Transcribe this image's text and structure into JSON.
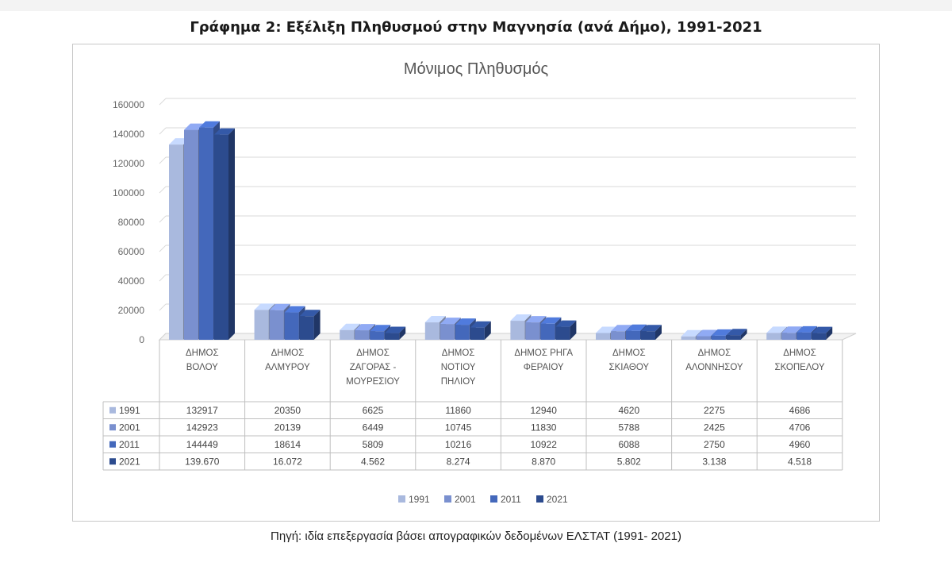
{
  "figure_title": "Γράφημα 2: Εξέλιξη Πληθυσμού στην Μαγνησία (ανά Δήμο), 1991-2021",
  "caption": "Πηγή: ιδία επεξεργασία βάσει απογραφικών δεδομένων ΕΛΣΤΑΤ (1991- 2021)",
  "chart_data": {
    "type": "bar",
    "title": "Μόνιμος Πληθυσμός",
    "xlabel": "",
    "ylabel": "",
    "ylim": [
      0,
      160000
    ],
    "yticks": [
      0,
      20000,
      40000,
      60000,
      80000,
      100000,
      120000,
      140000,
      160000
    ],
    "grid": true,
    "legend_position": "bottom",
    "style": "3d-clustered-column-with-data-table",
    "categories": [
      [
        "ΔΗΜΟΣ",
        "ΒΟΛΟΥ"
      ],
      [
        "ΔΗΜΟΣ",
        "ΑΛΜΥΡΟΥ"
      ],
      [
        "ΔΗΜΟΣ",
        "ΖΑΓΟΡΑΣ -",
        "ΜΟΥΡΕΣΙΟΥ"
      ],
      [
        "ΔΗΜΟΣ",
        "ΝΟΤΙΟΥ",
        "ΠΗΛΙΟΥ"
      ],
      [
        "ΔΗΜΟΣ ΡΗΓΑ",
        "ΦΕΡΑΙΟΥ"
      ],
      [
        "ΔΗΜΟΣ",
        "ΣΚΙΑΘΟΥ"
      ],
      [
        "ΔΗΜΟΣ",
        "ΑΛΟΝΝΗΣΟΥ"
      ],
      [
        "ΔΗΜΟΣ",
        "ΣΚΟΠΕΛΟΥ"
      ]
    ],
    "series": [
      {
        "name": "1991",
        "color": "#a9b9de",
        "values": [
          132917,
          20350,
          6625,
          11860,
          12940,
          4620,
          2275,
          4686
        ],
        "labels": [
          "132917",
          "20350",
          "6625",
          "11860",
          "12940",
          "4620",
          "2275",
          "4686"
        ]
      },
      {
        "name": "2001",
        "color": "#7a90cf",
        "values": [
          142923,
          20139,
          6449,
          10745,
          11830,
          5788,
          2425,
          4706
        ],
        "labels": [
          "142923",
          "20139",
          "6449",
          "10745",
          "11830",
          "5788",
          "2425",
          "4706"
        ]
      },
      {
        "name": "2011",
        "color": "#4468bb",
        "values": [
          144449,
          18614,
          5809,
          10216,
          10922,
          6088,
          2750,
          4960
        ],
        "labels": [
          "144449",
          "18614",
          "5809",
          "10216",
          "10922",
          "6088",
          "2750",
          "4960"
        ]
      },
      {
        "name": "2021",
        "color": "#2c4b8e",
        "values": [
          139670,
          16072,
          4562,
          8274,
          8870,
          5802,
          3138,
          4518
        ],
        "labels": [
          "139.670",
          "16.072",
          "4.562",
          "8.274",
          "8.870",
          "5.802",
          "3.138",
          "4.518"
        ]
      }
    ]
  }
}
